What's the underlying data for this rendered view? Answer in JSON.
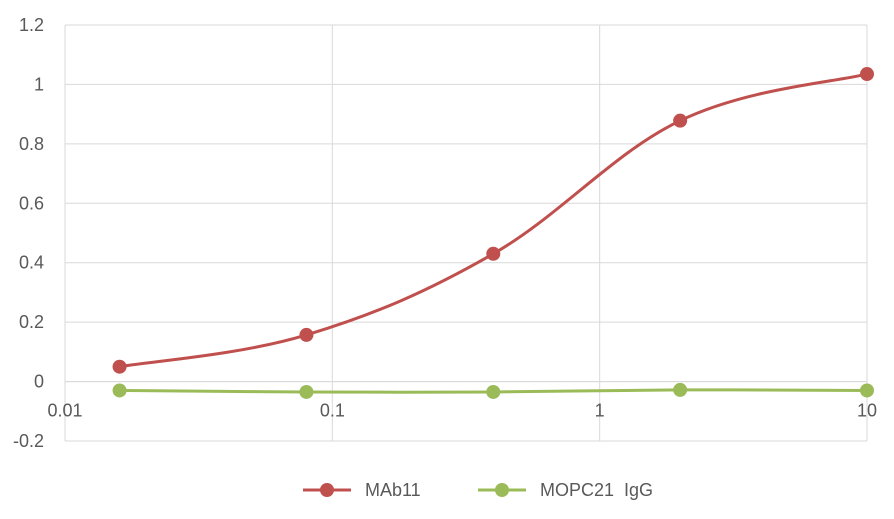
{
  "chart_data": {
    "type": "line",
    "x_scale": "log",
    "title": "",
    "xlabel": "",
    "ylabel": "",
    "xlim": [
      0.01,
      10
    ],
    "ylim": [
      -0.2,
      1.2
    ],
    "x_ticks": [
      0.01,
      0.1,
      1,
      10
    ],
    "x_tick_labels": [
      "0.01",
      "0.1",
      "1",
      "10"
    ],
    "y_ticks": [
      -0.2,
      0,
      0.2,
      0.4,
      0.6,
      0.8,
      1,
      1.2
    ],
    "y_tick_labels": [
      "-0.2",
      "0",
      "0.2",
      "0.4",
      "0.6",
      "0.8",
      "1",
      "1.2"
    ],
    "grid": true,
    "legend_position": "bottom",
    "series": [
      {
        "name": "MAb11",
        "color": "#c0504d",
        "x": [
          0.016,
          0.08,
          0.4,
          2,
          10
        ],
        "y": [
          0.05,
          0.157,
          0.43,
          0.878,
          1.035
        ]
      },
      {
        "name": "MOPC21  IgG",
        "color": "#9bbb59",
        "x": [
          0.016,
          0.08,
          0.4,
          2,
          10
        ],
        "y": [
          -0.03,
          -0.035,
          -0.035,
          -0.028,
          -0.03
        ]
      }
    ]
  }
}
